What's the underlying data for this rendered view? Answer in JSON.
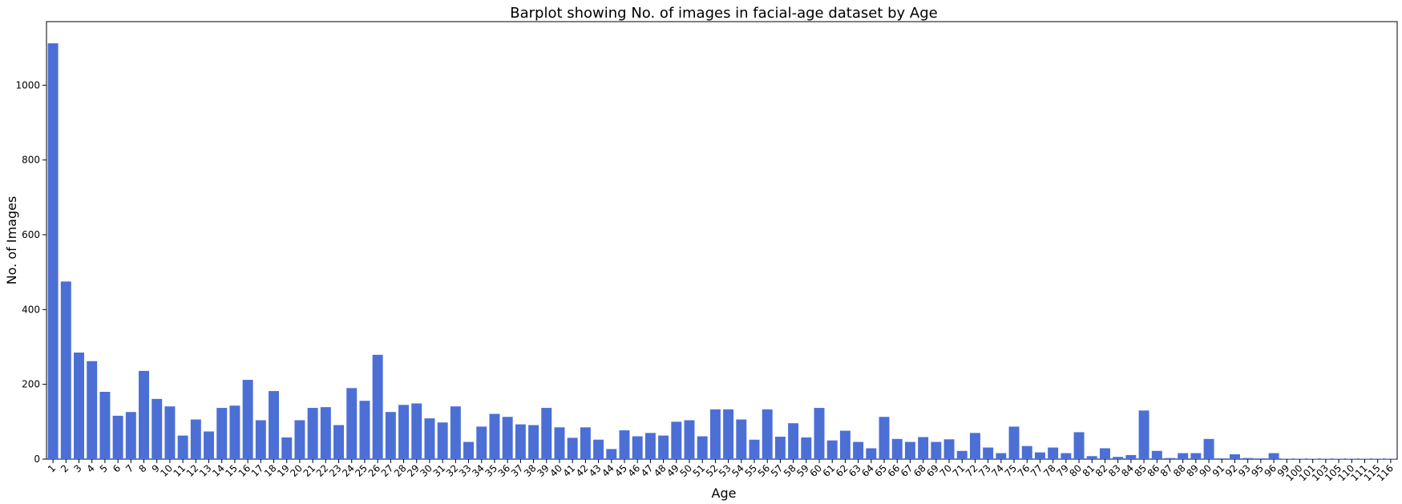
{
  "chart_data": {
    "type": "bar",
    "title": "Barplot showing No. of images in facial-age dataset by Age",
    "xlabel": "Age",
    "ylabel": "No. of Images",
    "ylim": [
      0,
      1170
    ],
    "yticks": [
      0,
      200,
      400,
      600,
      800,
      1000
    ],
    "grid": false,
    "bar_color": "#4c6fd6",
    "categories": [
      "1",
      "2",
      "3",
      "4",
      "5",
      "6",
      "7",
      "8",
      "9",
      "10",
      "11",
      "12",
      "13",
      "14",
      "15",
      "16",
      "17",
      "18",
      "19",
      "20",
      "21",
      "22",
      "23",
      "24",
      "25",
      "26",
      "27",
      "28",
      "29",
      "30",
      "31",
      "32",
      "33",
      "34",
      "35",
      "36",
      "37",
      "38",
      "39",
      "40",
      "41",
      "42",
      "43",
      "44",
      "45",
      "46",
      "47",
      "48",
      "49",
      "50",
      "51",
      "52",
      "53",
      "54",
      "55",
      "56",
      "57",
      "58",
      "59",
      "60",
      "61",
      "62",
      "63",
      "64",
      "65",
      "66",
      "67",
      "68",
      "69",
      "70",
      "71",
      "72",
      "73",
      "74",
      "75",
      "76",
      "77",
      "78",
      "79",
      "80",
      "81",
      "82",
      "83",
      "84",
      "85",
      "86",
      "87",
      "88",
      "89",
      "90",
      "91",
      "92",
      "93",
      "95",
      "96",
      "99",
      "100",
      "101",
      "103",
      "105",
      "110",
      "111",
      "115",
      "116"
    ],
    "values": [
      1112,
      475,
      285,
      262,
      180,
      116,
      126,
      236,
      161,
      141,
      63,
      106,
      74,
      137,
      143,
      212,
      104,
      182,
      58,
      104,
      137,
      139,
      91,
      190,
      156,
      279,
      126,
      145,
      149,
      109,
      98,
      141,
      46,
      87,
      121,
      113,
      93,
      91,
      137,
      85,
      57,
      85,
      52,
      27,
      77,
      61,
      70,
      63,
      100,
      104,
      61,
      133,
      133,
      106,
      52,
      133,
      60,
      96,
      58,
      137,
      50,
      76,
      46,
      29,
      113,
      54,
      46,
      59,
      46,
      53,
      22,
      70,
      31,
      16,
      87,
      35,
      18,
      31,
      16,
      72,
      8,
      29,
      6,
      11,
      130,
      22,
      3,
      16,
      16,
      54,
      2,
      13,
      3,
      2,
      16,
      1,
      1,
      1,
      1,
      1,
      1,
      1,
      1,
      1
    ]
  }
}
